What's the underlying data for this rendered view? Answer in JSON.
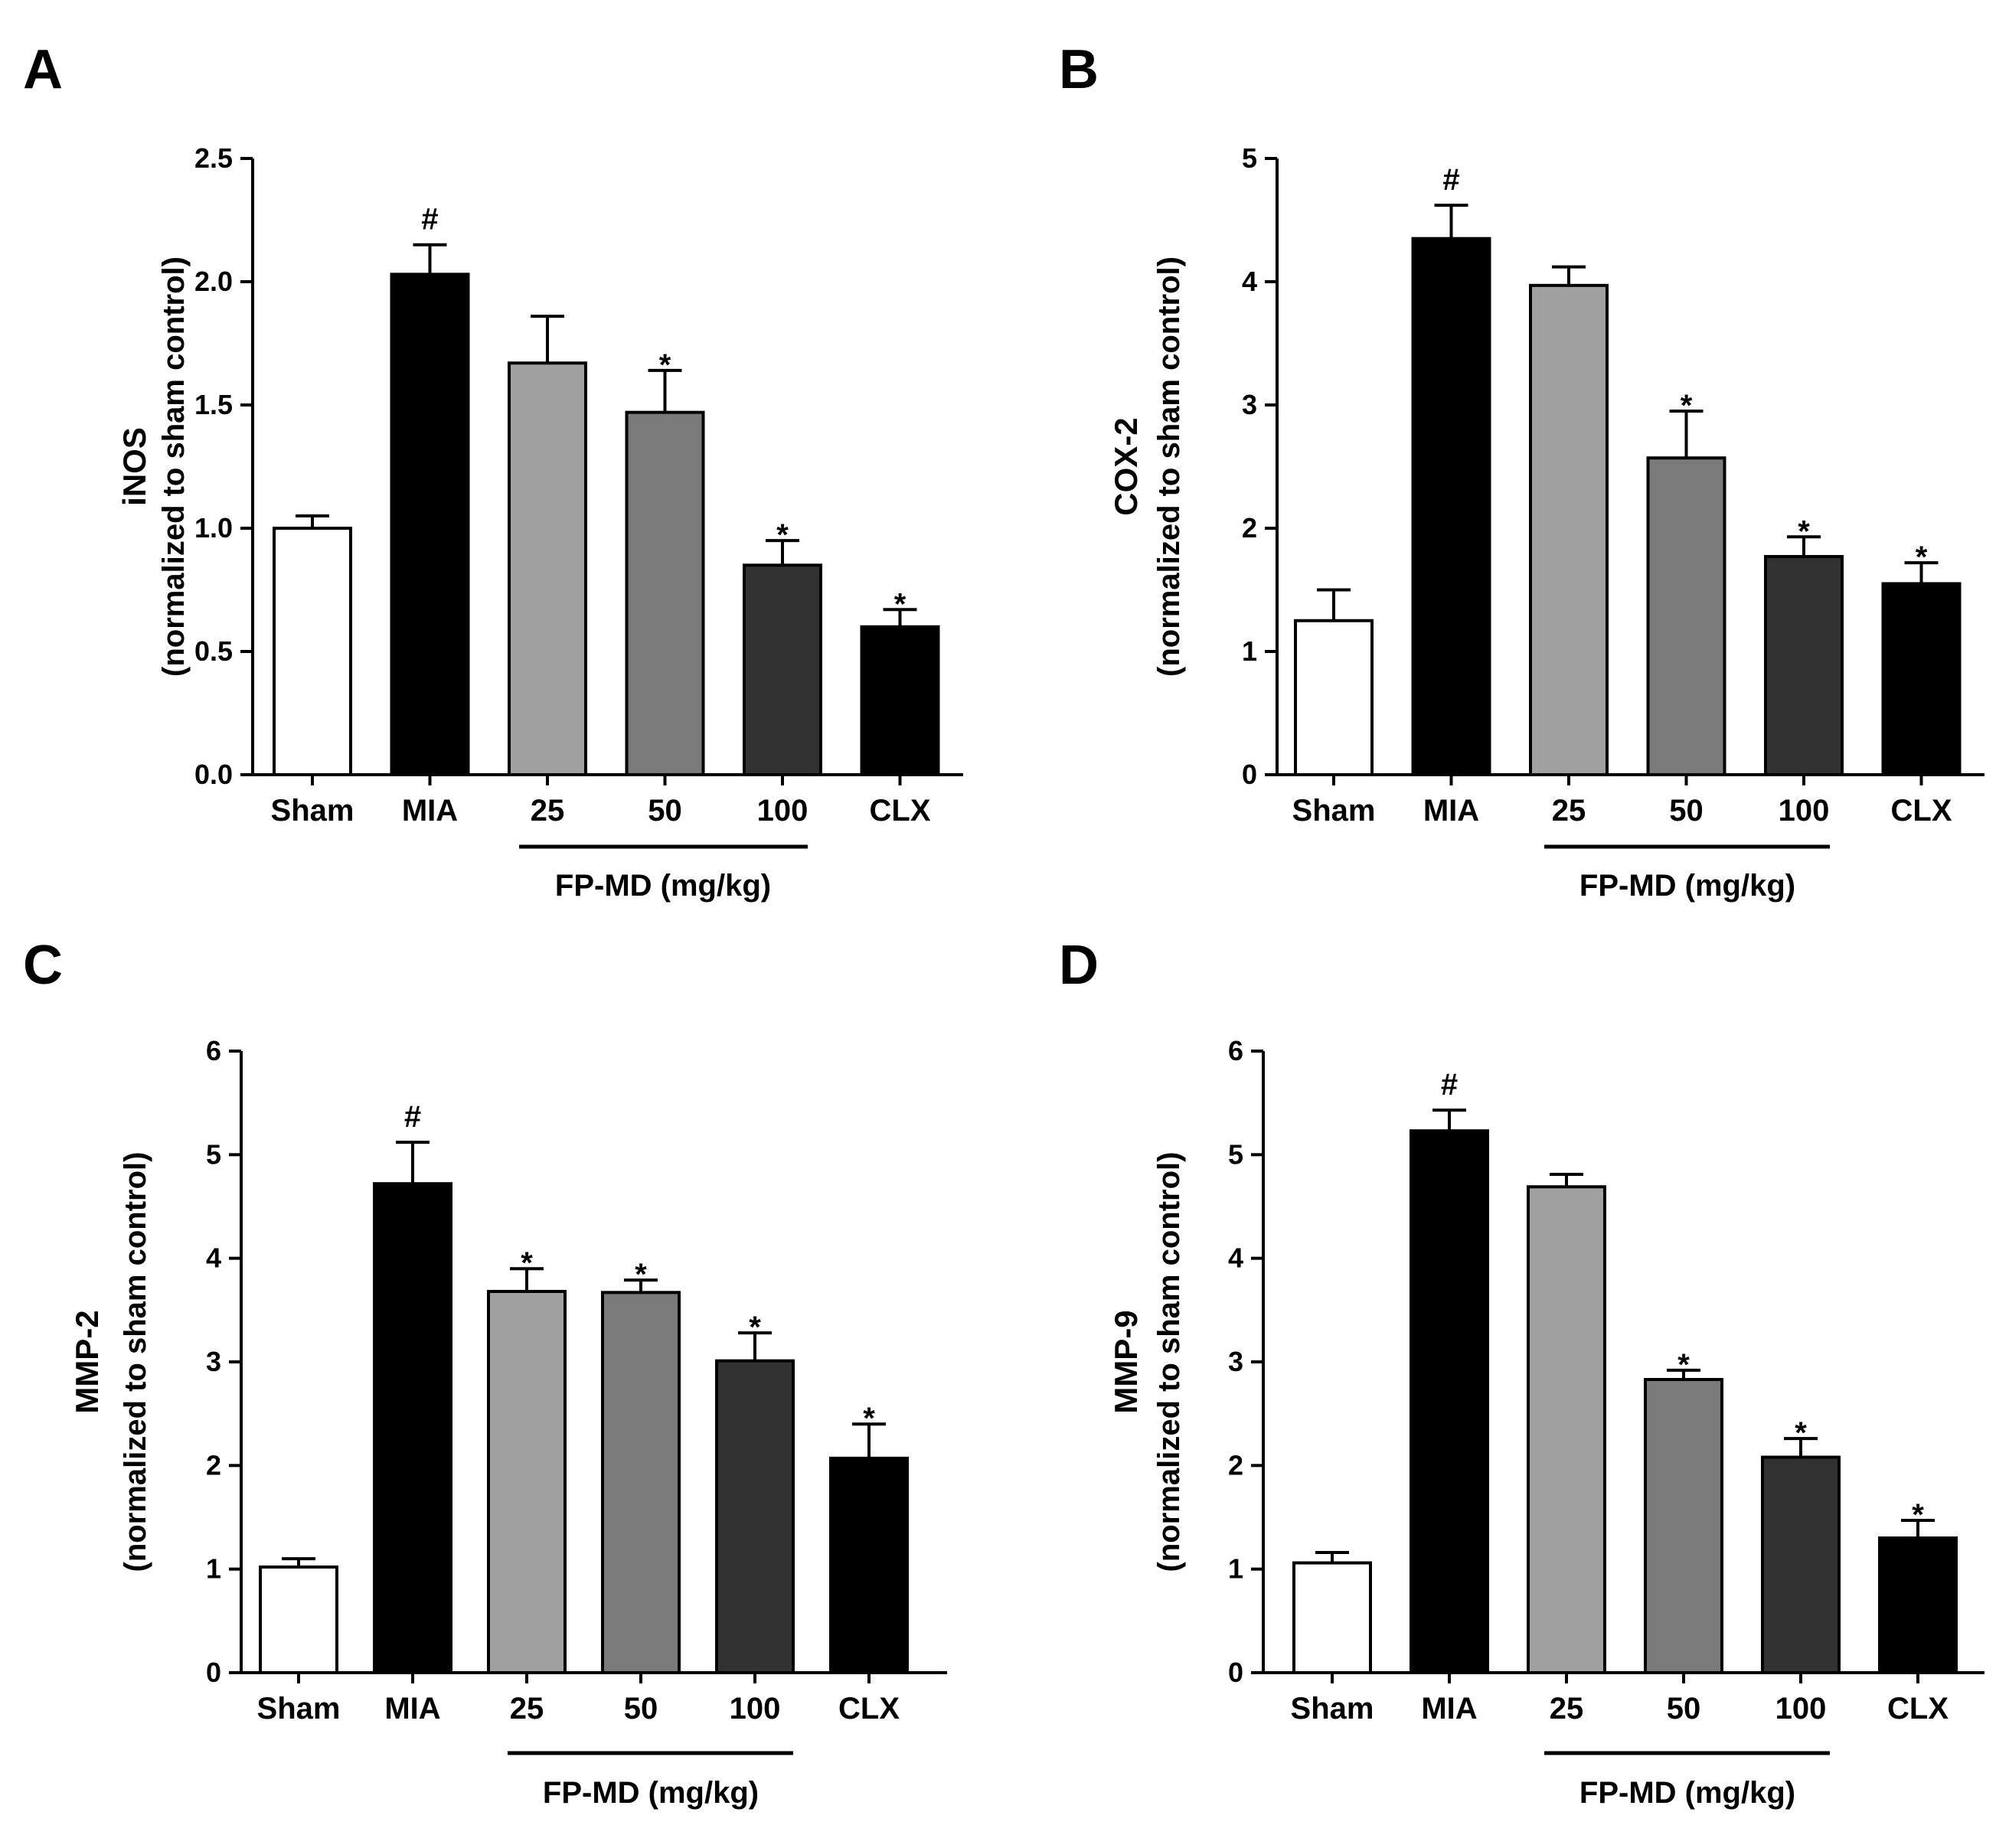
{
  "colors": {
    "axis": "#000000",
    "sham": "#ffffff",
    "mia": "#000000",
    "fp25": "#a0a0a0",
    "fp50": "#7a7a7a",
    "fp100": "#323232",
    "clx": "#000000",
    "bar_outline": "#000000"
  },
  "chart_data": [
    {
      "type": "bar",
      "panel": "A",
      "ylabel": "iNOS",
      "ylabel_sub": "(normalized to sham control)",
      "categories": [
        "Sham",
        "MIA",
        "25",
        "50",
        "100",
        "CLX"
      ],
      "values": [
        1.0,
        2.03,
        1.67,
        1.47,
        0.85,
        0.6
      ],
      "errors": [
        0.05,
        0.12,
        0.19,
        0.17,
        0.1,
        0.07
      ],
      "significance": [
        "",
        "#",
        "",
        "*",
        "*",
        "*"
      ],
      "ylim": [
        0,
        2.5
      ],
      "yticks": [
        "0.0",
        "0.5",
        "1.0",
        "1.5",
        "2.0",
        "2.5"
      ],
      "ytick_values": [
        0,
        0.5,
        1.0,
        1.5,
        2.0,
        2.5
      ],
      "group_label": "FP-MD (mg/kg)"
    },
    {
      "type": "bar",
      "panel": "B",
      "ylabel": "COX-2",
      "ylabel_sub": "(normalized to sham control)",
      "categories": [
        "Sham",
        "MIA",
        "25",
        "50",
        "100",
        "CLX"
      ],
      "values": [
        1.25,
        4.35,
        3.97,
        2.57,
        1.77,
        1.55
      ],
      "errors": [
        0.25,
        0.27,
        0.15,
        0.38,
        0.16,
        0.17
      ],
      "significance": [
        "",
        "#",
        "",
        "*",
        "*",
        "*"
      ],
      "ylim": [
        0,
        5
      ],
      "yticks": [
        "0",
        "1",
        "2",
        "3",
        "4",
        "5"
      ],
      "ytick_values": [
        0,
        1,
        2,
        3,
        4,
        5
      ],
      "group_label": "FP-MD (mg/kg)"
    },
    {
      "type": "bar",
      "panel": "C",
      "ylabel": "MMP-2",
      "ylabel_sub": "(normalized to sham control)",
      "categories": [
        "Sham",
        "MIA",
        "25",
        "50",
        "100",
        "CLX"
      ],
      "values": [
        1.02,
        4.72,
        3.68,
        3.67,
        3.01,
        2.07
      ],
      "errors": [
        0.08,
        0.4,
        0.22,
        0.12,
        0.27,
        0.33
      ],
      "significance": [
        "",
        "#",
        "*",
        "*",
        "*",
        "*"
      ],
      "ylim": [
        0,
        6
      ],
      "yticks": [
        "0",
        "1",
        "2",
        "3",
        "4",
        "5",
        "6"
      ],
      "ytick_values": [
        0,
        1,
        2,
        3,
        4,
        5,
        6
      ],
      "group_label": "FP-MD (mg/kg)"
    },
    {
      "type": "bar",
      "panel": "D",
      "ylabel": "MMP-9",
      "ylabel_sub": "(normalized to sham control)",
      "categories": [
        "Sham",
        "MIA",
        "25",
        "50",
        "100",
        "CLX"
      ],
      "values": [
        1.06,
        5.23,
        4.69,
        2.83,
        2.08,
        1.3
      ],
      "errors": [
        0.1,
        0.2,
        0.12,
        0.09,
        0.18,
        0.17
      ],
      "significance": [
        "",
        "#",
        "",
        "*",
        "*",
        "*"
      ],
      "ylim": [
        0,
        6
      ],
      "yticks": [
        "0",
        "1",
        "2",
        "3",
        "4",
        "5",
        "6"
      ],
      "ytick_values": [
        0,
        1,
        2,
        3,
        4,
        5,
        6
      ],
      "group_label": "FP-MD (mg/kg)"
    }
  ]
}
